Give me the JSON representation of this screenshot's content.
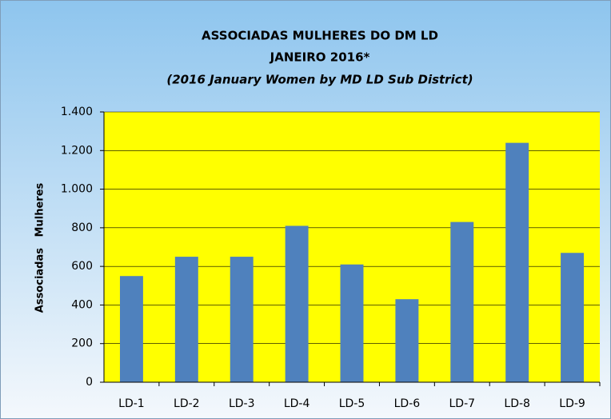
{
  "chart_data": {
    "type": "bar",
    "title": [
      "ASSOCIADAS MULHERES DO DM LD",
      "JANEIRO 2016*",
      "(2016 January Women by MD LD Sub District)"
    ],
    "y_label": "Associadas   Mulheres",
    "categories": [
      "LD-1",
      "LD-2",
      "LD-3",
      "LD-4",
      "LD-5",
      "LD-6",
      "LD-7",
      "LD-8",
      "LD-9"
    ],
    "values": [
      550,
      650,
      650,
      810,
      610,
      430,
      830,
      1240,
      670
    ],
    "color": "#4f81bd",
    "plot_background": "#ffff00",
    "ylim": [
      0,
      1400
    ],
    "yticks": [
      0,
      200,
      400,
      600,
      800,
      {
        "value": 1000,
        "label": "1.000"
      },
      {
        "value": 1200,
        "label": "1.200"
      },
      {
        "value": 1400,
        "label": "1.400"
      }
    ],
    "grid": true
  }
}
